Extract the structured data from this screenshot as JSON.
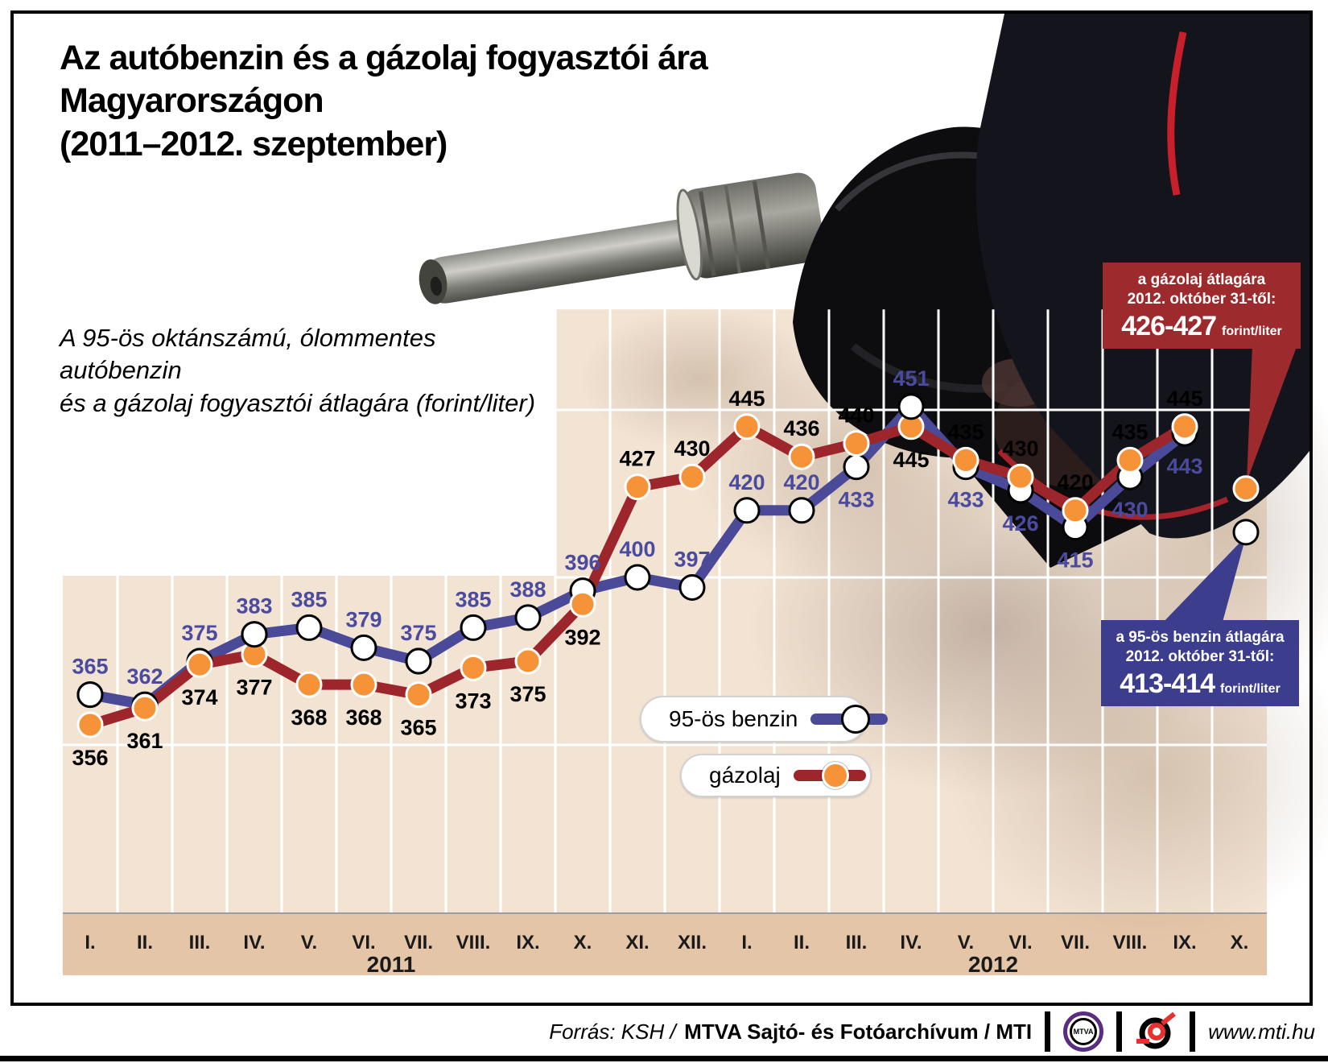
{
  "header": {
    "title_line1": "Az autóbenzin és a gázolaj fogyasztói ára",
    "title_line2": "Magyarországon",
    "title_line3": "(2011–2012. szeptember)",
    "subtitle_line1": "A 95-ös oktánszámú, ólommentes autóbenzin",
    "subtitle_line2": "és a gázolaj fogyasztói átlagára (forint/liter)"
  },
  "legend": {
    "benzin_label": "95-ös benzin",
    "gazolaj_label": "gázolaj"
  },
  "callouts": {
    "gazolaj": {
      "line1": "a gázolaj átlagára",
      "line2": "2012. október 31-től:",
      "value": "426-427",
      "unit": "forint/liter",
      "bg_color": "#9d2b2e"
    },
    "benzin": {
      "line1": "a 95-ös benzin átlagára",
      "line2": "2012. október 31-től:",
      "value": "413-414",
      "unit": "forint/liter",
      "bg_color": "#3d3d8d"
    }
  },
  "footer": {
    "source_italic": "Forrás: KSH /",
    "source_bold": "MTVA Sajtó- és Fotóarchívum / MTI",
    "mtva_logo_label": "MTVA",
    "website": "www.mti.hu"
  },
  "chart_data": {
    "type": "line",
    "unit": "forint/liter",
    "x_labels": [
      "I.",
      "II.",
      "III.",
      "IV.",
      "V.",
      "VI.",
      "VII.",
      "VIII.",
      "IX.",
      "X.",
      "XI.",
      "XII.",
      "I.",
      "II.",
      "III.",
      "IV.",
      "V.",
      "VI.",
      "VII.",
      "VIII.",
      "IX.",
      "X."
    ],
    "year_groups": [
      {
        "label": "2011",
        "start_index": 0,
        "months": 12
      },
      {
        "label": "2012",
        "start_index": 12,
        "months": 10
      }
    ],
    "ylim": [
      300,
      480
    ],
    "gridline_values": [
      350,
      400,
      450
    ],
    "grid": true,
    "legend_position": "center-bottom",
    "plot_bg_color": "#f2e3d3",
    "axis_strip_color": "#e4c5a8",
    "series": [
      {
        "name": "95-ös benzin",
        "color": "#4a4a99",
        "marker_fill": "#ffffff",
        "marker_stroke": "#000000",
        "label_color": "#4a4a9e",
        "values": [
          365,
          362,
          375,
          383,
          385,
          379,
          375,
          385,
          388,
          396,
          400,
          397,
          420,
          420,
          433,
          451,
          433,
          426,
          415,
          430,
          443
        ],
        "label_side": [
          "above",
          "above",
          "above",
          "above",
          "above",
          "above",
          "above",
          "above",
          "above",
          "above",
          "above",
          "above",
          "above",
          "above",
          "below",
          "above",
          "below",
          "below",
          "below",
          "below",
          "below"
        ]
      },
      {
        "name": "gázolaj",
        "color": "#9c262b",
        "marker_fill": "#f69238",
        "marker_stroke": "#ffffff",
        "label_color": "#000000",
        "values": [
          356,
          361,
          374,
          377,
          368,
          368,
          365,
          373,
          375,
          392,
          427,
          430,
          445,
          436,
          440,
          445,
          435,
          430,
          420,
          435,
          445
        ],
        "label_side": [
          "below",
          "below",
          "below",
          "below",
          "below",
          "below",
          "below",
          "below",
          "below",
          "below",
          "above",
          "above",
          "above",
          "above",
          "above",
          "below",
          "above",
          "above",
          "above",
          "above",
          "above"
        ]
      }
    ],
    "october_forecast_points": [
      {
        "series": "gázolaj",
        "value": 426.5,
        "x_index": 21
      },
      {
        "series": "95-ös benzin",
        "value": 413.5,
        "x_index": 21
      }
    ]
  }
}
